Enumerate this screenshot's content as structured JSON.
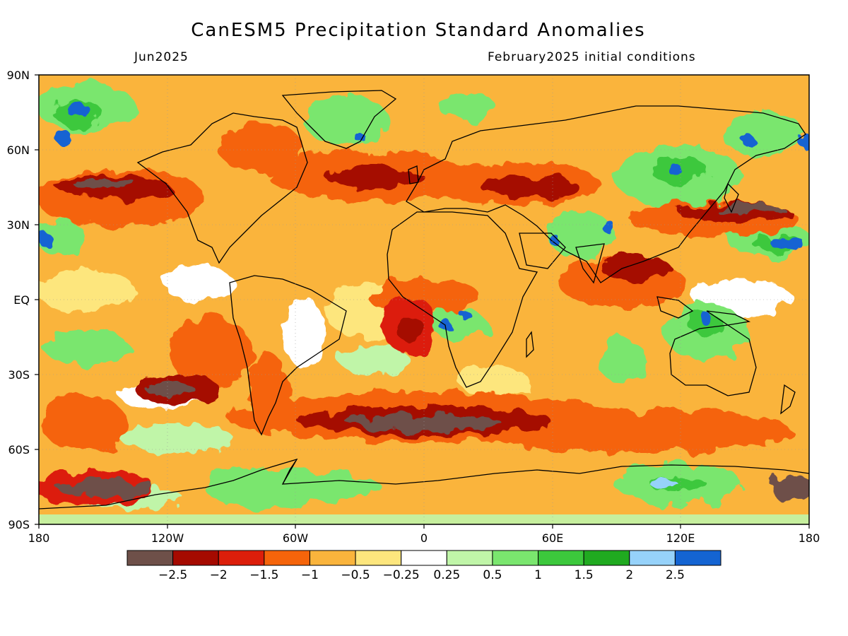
{
  "title": "CanESM5 Precipitation Standard Anomalies",
  "subtitle_left": "Jun2025",
  "subtitle_right": "February2025 initial conditions",
  "lat_labels": [
    "90N",
    "60N",
    "30N",
    "EQ",
    "30S",
    "60S",
    "90S"
  ],
  "lon_labels": [
    "180",
    "120W",
    "60W",
    "0",
    "60E",
    "120E",
    "180"
  ],
  "colorbar": {
    "colors": [
      "#6e5049",
      "#a50a00",
      "#dc1e0a",
      "#f5640a",
      "#fab43c",
      "#fde67d",
      "#ffffff",
      "#c0f5a8",
      "#7ae66e",
      "#3cc83c",
      "#20aa20",
      "#96d2fa",
      "#1464d2"
    ],
    "tick_labels": [
      "−2.5",
      "−2",
      "−1.5",
      "−1",
      "−0.5",
      "−0.25",
      "0.25",
      "0.5",
      "1",
      "1.5",
      "2",
      "2.5"
    ]
  }
}
